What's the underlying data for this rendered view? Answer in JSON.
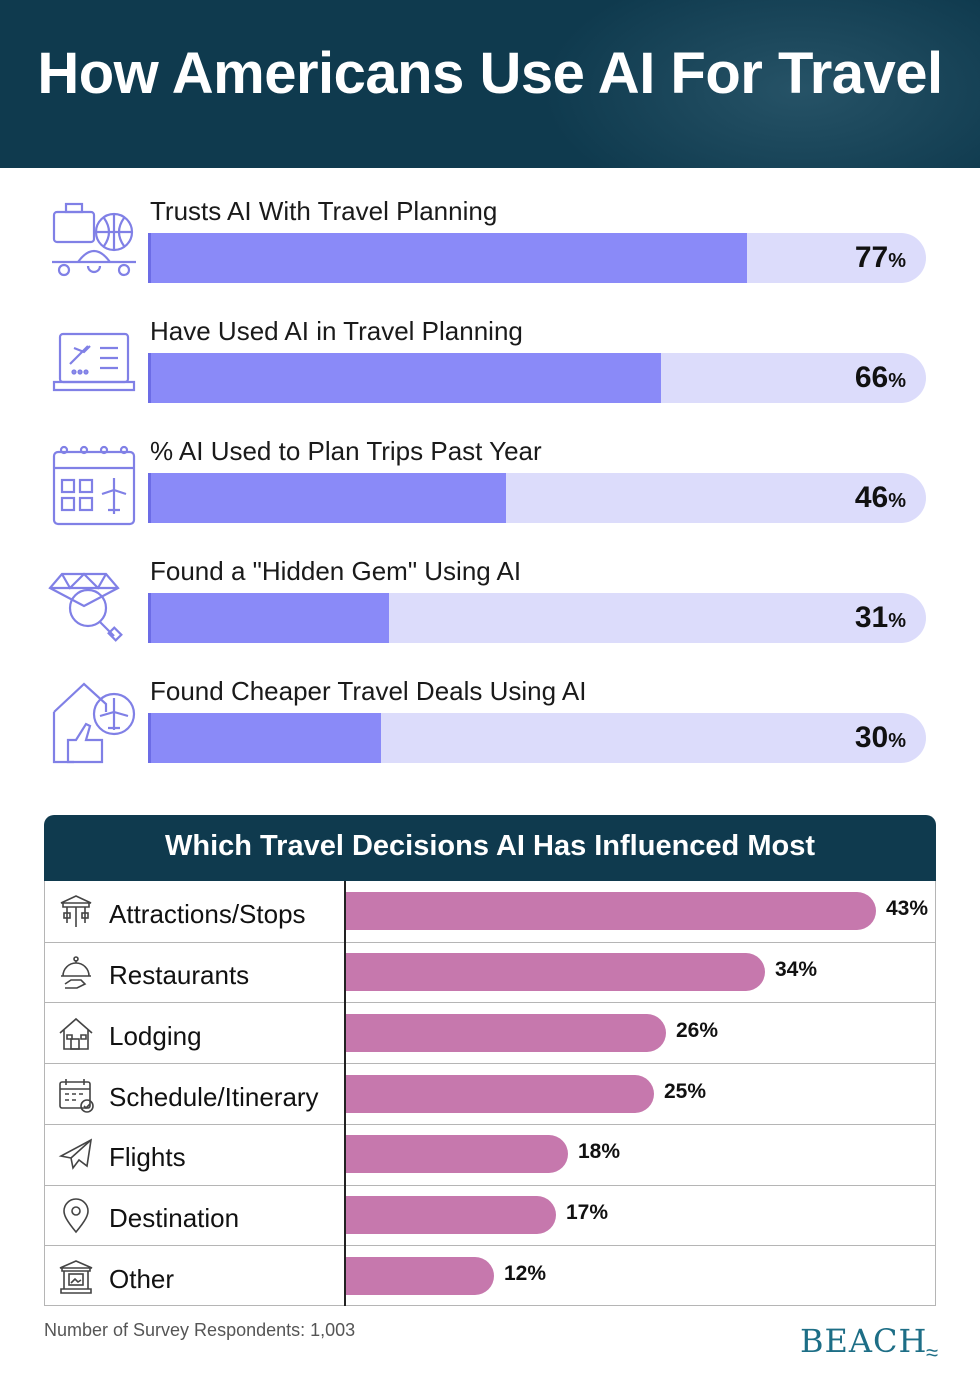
{
  "header": {
    "title": "How Americans Use AI For Travel"
  },
  "stats": [
    {
      "label": "Trusts AI With Travel Planning",
      "value": 77,
      "value_text": "77",
      "unit": "%",
      "icon": "luggage-globe-plane-icon"
    },
    {
      "label": "Have Used AI in Travel Planning",
      "value": 66,
      "value_text": "66",
      "unit": "%",
      "icon": "laptop-booking-icon"
    },
    {
      "label": "% AI Used to Plan Trips Past Year",
      "value": 46,
      "value_text": "46",
      "unit": "%",
      "icon": "calendar-plane-icon"
    },
    {
      "label": "Found a \"Hidden Gem\" Using AI",
      "value": 31,
      "value_text": "31",
      "unit": "%",
      "icon": "gem-magnifier-icon"
    },
    {
      "label": "Found Cheaper Travel Deals Using AI",
      "value": 30,
      "value_text": "30",
      "unit": "%",
      "icon": "thumbs-up-plane-tag-icon"
    }
  ],
  "chart_data": [
    {
      "type": "bar",
      "orientation": "horizontal",
      "categories": [
        "Trusts AI With Travel Planning",
        "Have Used AI in Travel Planning",
        "% AI Used to Plan Trips Past Year",
        "Found a \"Hidden Gem\" Using AI",
        "Found Cheaper Travel Deals Using AI"
      ],
      "values": [
        77,
        66,
        46,
        31,
        30
      ],
      "xlim": [
        0,
        100
      ],
      "unit": "%",
      "grid": false
    },
    {
      "type": "bar",
      "orientation": "horizontal",
      "title": "Which Travel Decisions AI Has Influenced Most",
      "categories": [
        "Attractions/Stops",
        "Restaurants",
        "Lodging",
        "Schedule/Itinerary",
        "Flights",
        "Destination",
        "Other"
      ],
      "values": [
        43,
        34,
        26,
        25,
        18,
        17,
        12
      ],
      "value_labels": [
        "43%",
        "34%",
        "26%",
        "25%",
        "18%",
        "17%",
        "12%"
      ],
      "unit": "%",
      "grid": false
    }
  ],
  "panel": {
    "title": "Which Travel Decisions AI Has Influenced Most",
    "rows": [
      {
        "label": "Attractions/Stops",
        "value": 43,
        "value_text": "43%",
        "icon": "carousel-icon"
      },
      {
        "label": "Restaurants",
        "value": 34,
        "value_text": "34%",
        "icon": "cloche-icon"
      },
      {
        "label": "Lodging",
        "value": 26,
        "value_text": "26%",
        "icon": "house-icon"
      },
      {
        "label": "Schedule/Itinerary",
        "value": 25,
        "value_text": "25%",
        "icon": "calendar-check-icon"
      },
      {
        "label": "Flights",
        "value": 18,
        "value_text": "18%",
        "icon": "airplane-icon"
      },
      {
        "label": "Destination",
        "value": 17,
        "value_text": "17%",
        "icon": "map-pin-icon"
      },
      {
        "label": "Other",
        "value": 12,
        "value_text": "12%",
        "icon": "museum-icon"
      }
    ]
  },
  "colors": {
    "header_bg": "#0f3a4e",
    "stat_fill": "#8a8af8",
    "stat_track": "#dcdcfb",
    "bar_pink": "#c678ad",
    "icon_stroke": "#8080e6",
    "logo": "#1d6e86"
  },
  "footer": {
    "note": "Number of Survey Respondents: 1,003",
    "logo": "BEACH"
  }
}
